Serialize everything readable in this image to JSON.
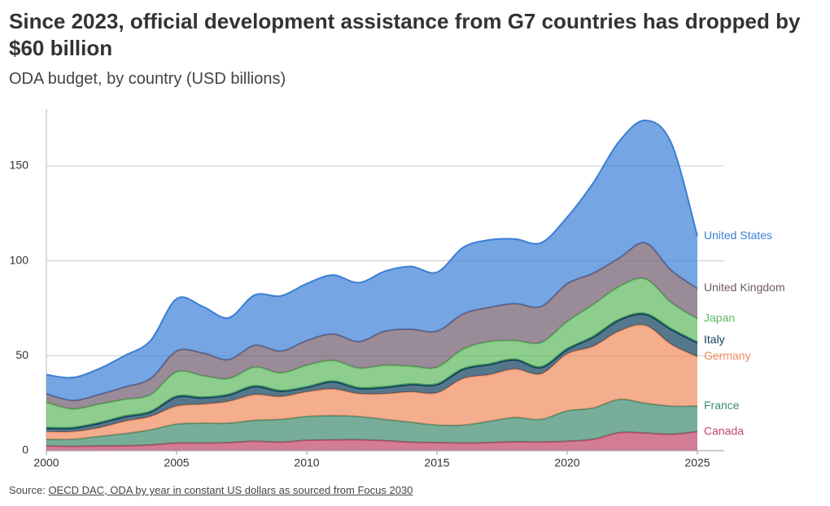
{
  "chart_data": {
    "type": "stacked-area",
    "title": "Since 2023, official development assistance from G7 countries has dropped by $60 billion",
    "subtitle": "ODA budget, by country (USD billions)",
    "source": {
      "prefix": "Source:",
      "link": "OECD DAC, ODA by year in constant US dollars as sourced from Focus 2030"
    },
    "x": [
      2000,
      2001,
      2002,
      2003,
      2004,
      2005,
      2006,
      2007,
      2008,
      2009,
      2010,
      2011,
      2012,
      2013,
      2014,
      2015,
      2016,
      2017,
      2018,
      2019,
      2020,
      2021,
      2022,
      2023,
      2024,
      2025
    ],
    "xlim": [
      2000,
      2025
    ],
    "xticks": [
      2000,
      2005,
      2010,
      2015,
      2020,
      2025
    ],
    "ylim": [
      0,
      180
    ],
    "yticks": [
      0,
      50,
      100,
      150
    ],
    "grid": true,
    "series": [
      {
        "name": "Canada",
        "color": "#c0446a",
        "values": [
          2.5,
          2.3,
          2.5,
          2.6,
          3,
          4,
          4,
          4.3,
          5,
          4.5,
          5.5,
          5.7,
          5.8,
          5.3,
          4.5,
          4.3,
          4,
          4.3,
          4.7,
          4.6,
          5,
          6,
          9.5,
          9.3,
          8.7,
          10
        ]
      },
      {
        "name": "France",
        "color": "#3e8b6e",
        "values": [
          3.5,
          3.7,
          5,
          6.4,
          8,
          10,
          10.5,
          10.2,
          11,
          12,
          12.5,
          12.8,
          12.2,
          11.2,
          10.5,
          9.2,
          9.5,
          11.2,
          12.8,
          11.9,
          16,
          16.5,
          17.5,
          15.7,
          14.8,
          13.5
        ]
      },
      {
        "name": "Germany",
        "color": "#f08a5d",
        "values": [
          4,
          4,
          4.5,
          6.5,
          7,
          9.5,
          10,
          11.5,
          13.5,
          12,
          13,
          14,
          12,
          13.5,
          16,
          17,
          24.5,
          24.5,
          25.5,
          24,
          30,
          32.5,
          36,
          41,
          32.5,
          26
        ]
      },
      {
        "name": "Italy",
        "color": "#0b3d5a",
        "values": [
          2,
          2,
          2.5,
          2.5,
          2.5,
          5,
          3.5,
          3.5,
          4.5,
          3,
          2.5,
          4,
          3,
          3.5,
          4,
          4.5,
          5,
          5.5,
          5,
          3.5,
          2.5,
          5,
          6,
          6,
          8,
          7.5
        ]
      },
      {
        "name": "Japan",
        "color": "#5cb85c",
        "values": [
          13.5,
          10,
          10,
          9,
          9,
          13,
          11.5,
          8.5,
          10,
          9.5,
          11.5,
          11,
          10.5,
          11.5,
          9.5,
          9,
          10.5,
          12,
          10,
          13,
          14.5,
          17,
          17.5,
          18.5,
          14,
          12.5
        ]
      },
      {
        "name": "United Kingdom",
        "color": "#6e5a6b",
        "values": [
          4.5,
          4.5,
          5,
          6.5,
          8.5,
          11,
          12,
          10,
          11.5,
          11.5,
          13,
          14,
          14,
          18,
          19.5,
          19,
          18.5,
          18,
          19.5,
          19,
          20,
          16.5,
          15,
          19,
          17,
          16
        ]
      },
      {
        "name": "United States",
        "color": "#3a7fd5",
        "values": [
          10,
          12,
          13.5,
          16.5,
          20,
          27.5,
          24.5,
          22,
          26.5,
          29,
          30,
          31,
          31,
          31.5,
          33,
          31,
          35,
          35.5,
          34,
          33.5,
          35,
          47.5,
          61.5,
          64.5,
          67,
          27.5
        ]
      }
    ]
  }
}
